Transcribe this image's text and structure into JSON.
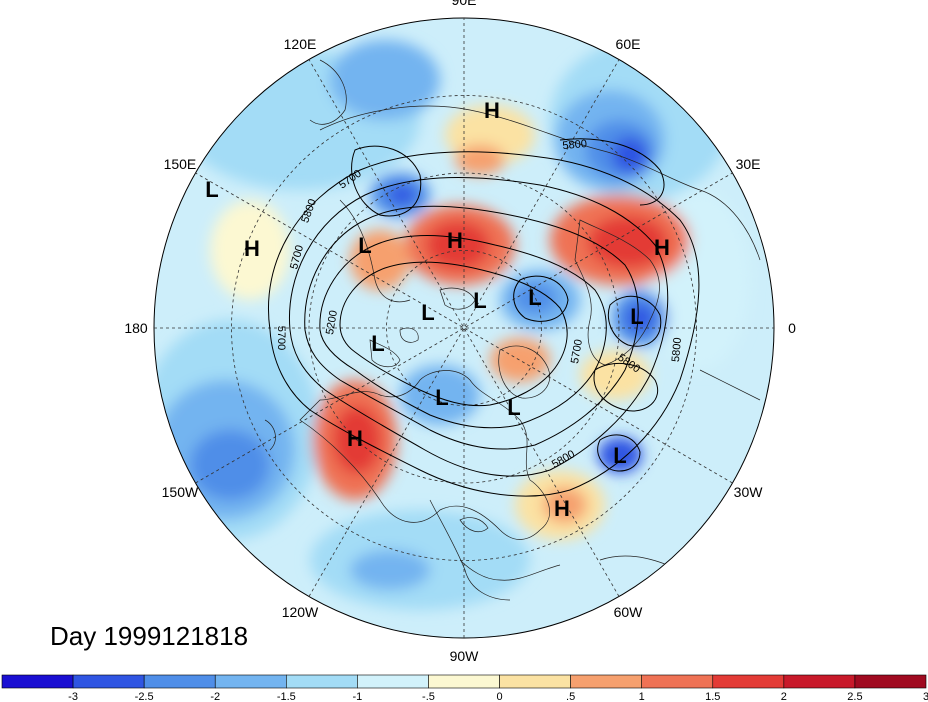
{
  "title": "Day 1999121818",
  "longitude_labels": [
    {
      "text": "90E",
      "deg": 90
    },
    {
      "text": "60E",
      "deg": 60
    },
    {
      "text": "30E",
      "deg": 30
    },
    {
      "text": "0",
      "deg": 0
    },
    {
      "text": "30W",
      "deg": -30
    },
    {
      "text": "60W",
      "deg": -60
    },
    {
      "text": "90W",
      "deg": -90
    },
    {
      "text": "120W",
      "deg": -120
    },
    {
      "text": "150W",
      "deg": -150
    },
    {
      "text": "180",
      "deg": 180
    },
    {
      "text": "150E",
      "deg": 150
    },
    {
      "text": "120E",
      "deg": 120
    }
  ],
  "pressure_centers": [
    {
      "type": "H",
      "label": "H"
    },
    {
      "type": "H",
      "label": "H"
    },
    {
      "type": "H",
      "label": "H"
    },
    {
      "type": "H",
      "label": "H"
    },
    {
      "type": "H",
      "label": "H"
    },
    {
      "type": "H",
      "label": "H"
    },
    {
      "type": "L",
      "label": "L"
    },
    {
      "type": "L",
      "label": "L"
    },
    {
      "type": "L",
      "label": "L"
    },
    {
      "type": "L",
      "label": "L"
    },
    {
      "type": "L",
      "label": "L"
    },
    {
      "type": "L",
      "label": "L"
    },
    {
      "type": "L",
      "label": "L"
    },
    {
      "type": "L",
      "label": "L"
    },
    {
      "type": "L",
      "label": "L"
    },
    {
      "type": "L",
      "label": "L"
    }
  ],
  "contour_labels": [
    "5800",
    "5700",
    "5800",
    "5700",
    "5200",
    "5700",
    "5700",
    "5800",
    "5800",
    "5800"
  ],
  "colorbar": {
    "colors": [
      "#1a0fd2",
      "#2f55e2",
      "#4f8ee8",
      "#73b4f0",
      "#a3dcf6",
      "#d2f2fb",
      "#fcf8d2",
      "#fbe2a3",
      "#f6a06e",
      "#ef7255",
      "#e33b36",
      "#c8192a",
      "#a00a20"
    ],
    "tick_labels": [
      "-3",
      "-2.5",
      "-2",
      "-1.5",
      "-1",
      "-.5",
      "0",
      ".5",
      "1",
      "1.5",
      "2",
      "2.5",
      "3"
    ]
  }
}
